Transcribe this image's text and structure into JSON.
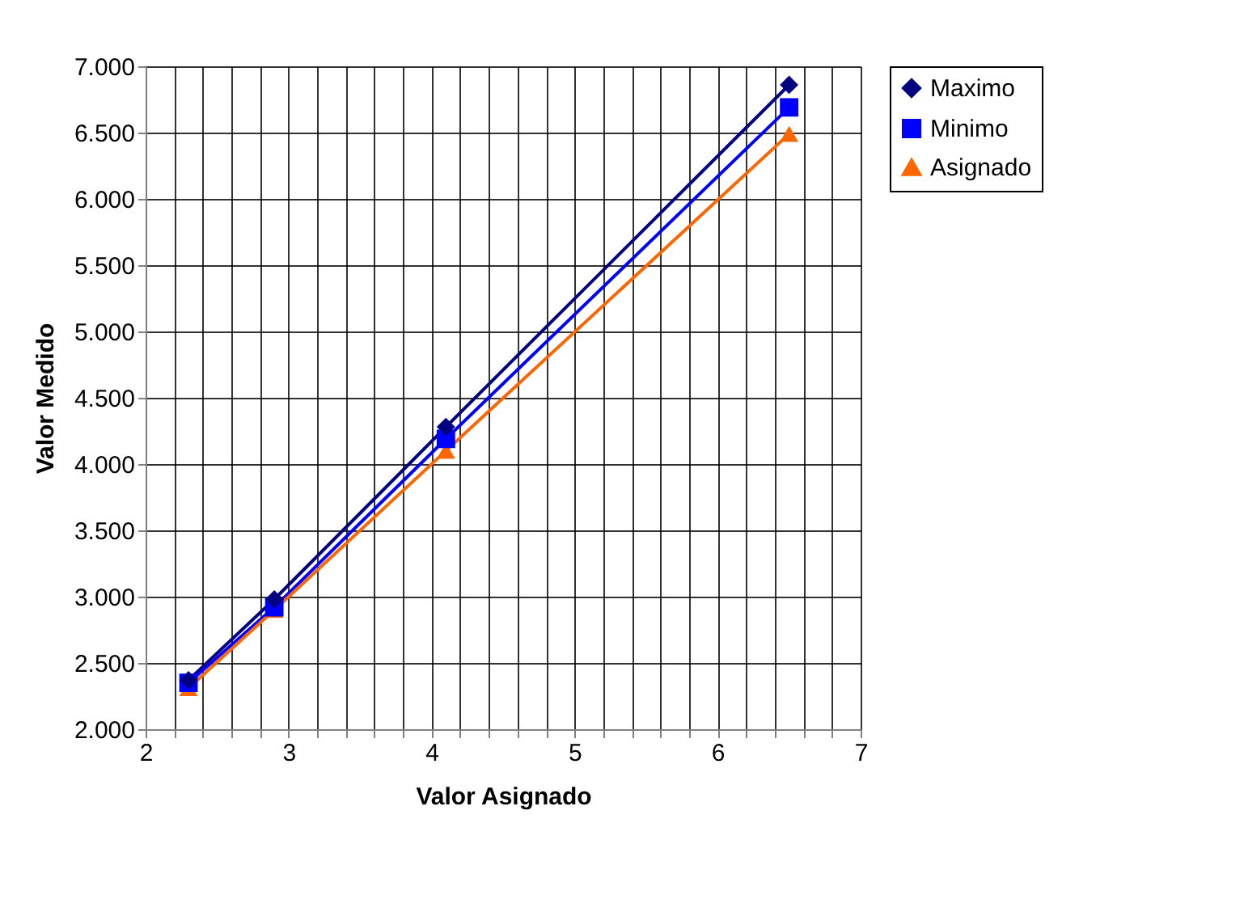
{
  "chart_data": {
    "type": "line",
    "xlabel": "Valor Asignado",
    "ylabel": "Valor Medido",
    "xlim": [
      2,
      7
    ],
    "xticks": [
      2,
      {
        "value": 2.2,
        "label": null
      },
      {
        "value": 2.4,
        "label": null
      },
      {
        "value": 2.6,
        "label": null
      },
      {
        "value": 2.8,
        "label": null
      },
      3,
      {
        "value": 3.2,
        "label": null
      },
      {
        "value": 3.4,
        "label": null
      },
      {
        "value": 3.6,
        "label": null
      },
      {
        "value": 3.8,
        "label": null
      },
      4,
      {
        "value": 4.2,
        "label": null
      },
      {
        "value": 4.4,
        "label": null
      },
      {
        "value": 4.6,
        "label": null
      },
      {
        "value": 4.8,
        "label": null
      },
      5,
      {
        "value": 5.2,
        "label": null
      },
      {
        "value": 5.4,
        "label": null
      },
      {
        "value": 5.6,
        "label": null
      },
      {
        "value": 5.8,
        "label": null
      },
      6,
      {
        "value": 6.2,
        "label": null
      },
      {
        "value": 6.4,
        "label": null
      },
      {
        "value": 6.6,
        "label": null
      },
      {
        "value": 6.8,
        "label": null
      },
      7
    ],
    "ylim": [
      2,
      7
    ],
    "yticks": [
      {
        "value": 2,
        "label": "2.000"
      },
      {
        "value": 2.5,
        "label": "2.500"
      },
      {
        "value": 3,
        "label": "3.000"
      },
      {
        "value": 3.5,
        "label": "3.500"
      },
      {
        "value": 4,
        "label": "4.000"
      },
      {
        "value": 4.5,
        "label": "4.500"
      },
      {
        "value": 5,
        "label": "5.000"
      },
      {
        "value": 5.5,
        "label": "5.500"
      },
      {
        "value": 6,
        "label": "6.000"
      },
      {
        "value": 6.5,
        "label": "6.500"
      },
      {
        "value": 7,
        "label": "7.000"
      }
    ],
    "x": [
      2.3,
      2.9,
      4.1,
      6.5
    ],
    "grid": true,
    "legend": "right",
    "line_style": "solid",
    "series": [
      {
        "name": "Maximo",
        "color": "#000080",
        "marker": "diamond",
        "values": [
          2.37,
          2.98,
          4.28,
          6.86
        ]
      },
      {
        "name": "Minimo",
        "color": "#0000ff",
        "marker": "square",
        "values": [
          2.35,
          2.92,
          4.19,
          6.69
        ]
      },
      {
        "name": "Asignado",
        "color": "#ff6600",
        "marker": "triangle",
        "values": [
          2.31,
          2.9,
          4.1,
          6.49
        ]
      }
    ]
  }
}
